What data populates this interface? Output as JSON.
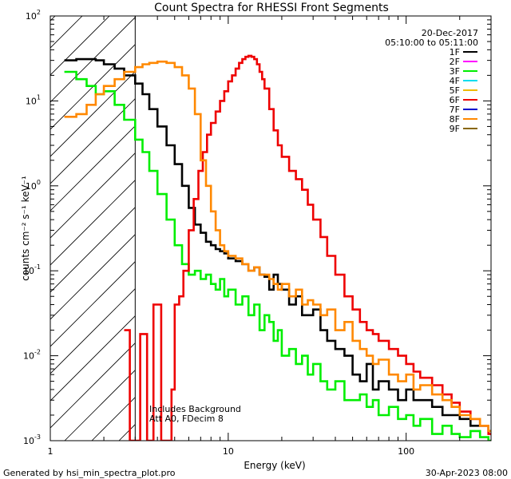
{
  "chart_data": {
    "type": "line",
    "title": "Count Spectra for RHESSI Front Segments",
    "xlabel": "Energy (keV)",
    "ylabel": "counts cm⁻² s⁻¹ keV⁻¹",
    "xscale": "log",
    "yscale": "log",
    "xlim": [
      1,
      300
    ],
    "ylim": [
      0.001,
      100
    ],
    "x_ticks": [
      {
        "value": 1,
        "label": "1"
      },
      {
        "value": 10,
        "label": "10"
      },
      {
        "value": 100,
        "label": "100"
      }
    ],
    "y_ticks": [
      {
        "value": 0.001,
        "base": "10",
        "exp": "-3"
      },
      {
        "value": 0.01,
        "base": "10",
        "exp": "-2"
      },
      {
        "value": 0.1,
        "base": "10",
        "exp": "-1"
      },
      {
        "value": 1,
        "base": "10",
        "exp": "0"
      },
      {
        "value": 10,
        "base": "10",
        "exp": "1"
      },
      {
        "value": 100,
        "base": "10",
        "exp": "2"
      }
    ],
    "date": "20-Dec-2017",
    "time_range": "05:10:00 to 05:11:00",
    "annotation_lines": [
      "Includes Background",
      "Att A0, FDecim 8"
    ],
    "attenuator_cutoff_kev": 3.0,
    "legend": [
      {
        "label": "1F",
        "color": "#000000"
      },
      {
        "label": "2F",
        "color": "#ff00ff"
      },
      {
        "label": "3F",
        "color": "#00ee00"
      },
      {
        "label": "4F",
        "color": "#00ddee"
      },
      {
        "label": "5F",
        "color": "#eebb00"
      },
      {
        "label": "6F",
        "color": "#ee0000"
      },
      {
        "label": "7F",
        "color": "#0000cc"
      },
      {
        "label": "8F",
        "color": "#ff8800"
      },
      {
        "label": "9F",
        "color": "#886600"
      }
    ],
    "series": [
      {
        "name": "1F",
        "color": "#000000",
        "x": [
          1.2,
          1.4,
          1.6,
          1.8,
          2.0,
          2.3,
          2.6,
          3.0,
          3.3,
          3.6,
          4.0,
          4.5,
          5.0,
          5.5,
          6.0,
          6.5,
          7.0,
          7.5,
          8.0,
          8.5,
          9.0,
          9.5,
          10,
          11,
          12,
          13,
          14,
          15,
          16,
          17,
          18,
          19,
          20,
          22,
          24,
          26,
          28,
          30,
          33,
          36,
          40,
          45,
          50,
          55,
          60,
          65,
          70,
          80,
          90,
          100,
          110,
          120,
          140,
          160,
          180,
          200,
          230,
          260,
          290
        ],
        "y": [
          30,
          31,
          31,
          30,
          27,
          24,
          20,
          16,
          12,
          8,
          5,
          3,
          1.8,
          1.0,
          0.55,
          0.35,
          0.28,
          0.22,
          0.2,
          0.18,
          0.17,
          0.16,
          0.14,
          0.13,
          0.12,
          0.1,
          0.11,
          0.09,
          0.085,
          0.06,
          0.09,
          0.07,
          0.06,
          0.04,
          0.05,
          0.03,
          0.03,
          0.035,
          0.02,
          0.015,
          0.012,
          0.01,
          0.006,
          0.005,
          0.008,
          0.004,
          0.005,
          0.004,
          0.003,
          0.004,
          0.003,
          0.003,
          0.0025,
          0.002,
          0.002,
          0.0018,
          0.0015,
          0.0015,
          0.0013
        ]
      },
      {
        "name": "3F",
        "color": "#00ee00",
        "x": [
          1.2,
          1.4,
          1.6,
          1.8,
          2.0,
          2.3,
          2.6,
          3.0,
          3.3,
          3.6,
          4.0,
          4.5,
          5.0,
          5.5,
          6.0,
          6.5,
          7.0,
          7.5,
          8.0,
          8.5,
          9.0,
          9.5,
          10,
          11,
          12,
          13,
          14,
          15,
          16,
          17,
          18,
          19,
          20,
          22,
          24,
          26,
          28,
          30,
          33,
          36,
          40,
          45,
          50,
          55,
          60,
          65,
          70,
          80,
          90,
          100,
          110,
          120,
          140,
          160,
          180,
          200,
          230,
          260,
          290
        ],
        "y": [
          22,
          18,
          15,
          12,
          13,
          9,
          6,
          3.5,
          2.5,
          1.5,
          0.8,
          0.4,
          0.2,
          0.12,
          0.09,
          0.1,
          0.08,
          0.09,
          0.07,
          0.06,
          0.08,
          0.05,
          0.06,
          0.04,
          0.05,
          0.03,
          0.04,
          0.02,
          0.03,
          0.025,
          0.015,
          0.02,
          0.01,
          0.012,
          0.008,
          0.01,
          0.006,
          0.008,
          0.005,
          0.004,
          0.005,
          0.003,
          0.003,
          0.0035,
          0.0025,
          0.003,
          0.002,
          0.0025,
          0.0018,
          0.002,
          0.0015,
          0.0018,
          0.0012,
          0.0015,
          0.0012,
          0.0011,
          0.0013,
          0.0011,
          0.001
        ]
      },
      {
        "name": "6F",
        "color": "#ee0000",
        "x": [
          2.6,
          2.7,
          2.8,
          2.9,
          3.0,
          3.1,
          3.2,
          3.35,
          3.5,
          3.65,
          3.8,
          4.0,
          4.2,
          4.4,
          4.6,
          4.8,
          5.0,
          5.3,
          5.6,
          6.0,
          6.4,
          6.8,
          7.2,
          7.6,
          8.0,
          8.5,
          9.0,
          9.5,
          10,
          10.5,
          11,
          11.5,
          12,
          12.5,
          13,
          13.5,
          14,
          14.5,
          15,
          15.5,
          16,
          17,
          18,
          19,
          20,
          22,
          24,
          26,
          28,
          30,
          33,
          36,
          40,
          45,
          50,
          55,
          60,
          65,
          70,
          80,
          90,
          100,
          110,
          120,
          140,
          160,
          180,
          200,
          230,
          260,
          290
        ],
        "y": [
          0.02,
          0.02,
          0.001,
          0.001,
          0.001,
          0.001,
          0.018,
          0.018,
          0.001,
          0.001,
          0.04,
          0.04,
          0.001,
          0.001,
          0.001,
          0.004,
          0.04,
          0.05,
          0.1,
          0.3,
          0.7,
          1.5,
          2.5,
          4,
          5.5,
          7.5,
          10,
          13,
          17,
          20,
          24,
          28,
          31,
          33,
          34,
          33,
          31,
          27,
          22,
          18,
          14,
          8,
          4.5,
          3,
          2.2,
          1.5,
          1.2,
          0.9,
          0.6,
          0.4,
          0.25,
          0.15,
          0.09,
          0.05,
          0.035,
          0.025,
          0.02,
          0.018,
          0.015,
          0.012,
          0.01,
          0.008,
          0.0065,
          0.0055,
          0.0045,
          0.0035,
          0.0028,
          0.0022,
          0.0018,
          0.0015,
          0.0012
        ]
      },
      {
        "name": "8F",
        "color": "#ff8800",
        "x": [
          1.2,
          1.4,
          1.6,
          1.8,
          2.0,
          2.3,
          2.6,
          3.0,
          3.3,
          3.6,
          4.0,
          4.5,
          5.0,
          5.5,
          6.0,
          6.5,
          7.0,
          7.5,
          8.0,
          8.5,
          9.0,
          9.5,
          10,
          11,
          12,
          13,
          14,
          15,
          16,
          17,
          18,
          19,
          20,
          22,
          24,
          26,
          28,
          30,
          33,
          36,
          40,
          45,
          50,
          55,
          60,
          65,
          70,
          80,
          90,
          100,
          110,
          120,
          140,
          160,
          180,
          200,
          230,
          260,
          290
        ],
        "y": [
          6.5,
          7,
          9,
          12,
          15,
          18,
          22,
          25,
          27,
          28,
          29,
          28,
          25,
          20,
          14,
          7,
          2,
          1.0,
          0.5,
          0.3,
          0.2,
          0.17,
          0.15,
          0.14,
          0.12,
          0.1,
          0.11,
          0.09,
          0.09,
          0.08,
          0.07,
          0.06,
          0.07,
          0.05,
          0.06,
          0.04,
          0.045,
          0.04,
          0.03,
          0.035,
          0.02,
          0.025,
          0.015,
          0.012,
          0.01,
          0.008,
          0.009,
          0.006,
          0.005,
          0.006,
          0.004,
          0.0045,
          0.0035,
          0.003,
          0.0025,
          0.002,
          0.0018,
          0.0015,
          0.0013
        ]
      }
    ]
  },
  "footer": {
    "generated_by": "Generated by hsi_min_spectra_plot.pro",
    "timestamp": "30-Apr-2023 08:00"
  }
}
